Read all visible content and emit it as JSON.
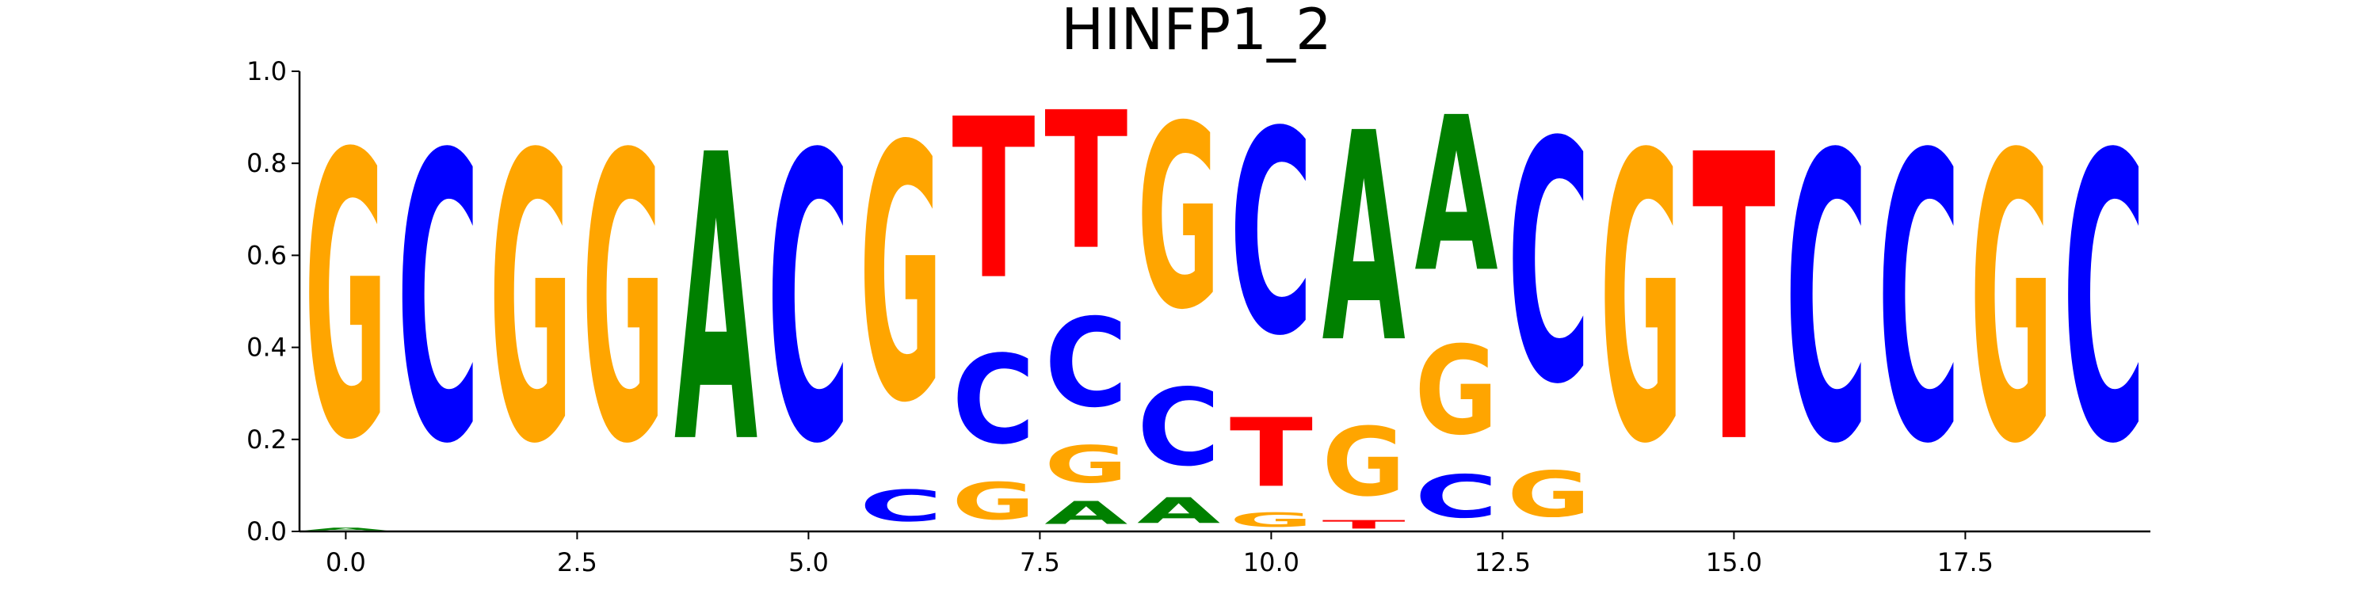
{
  "chart_data": {
    "type": "sequence-logo",
    "title": "HINFP1_2",
    "xlabel": "",
    "ylabel": "",
    "xlim": [
      -0.5,
      19.5
    ],
    "ylim": [
      0.0,
      1.0
    ],
    "x_ticks": [
      0.0,
      2.5,
      5.0,
      7.5,
      10.0,
      12.5,
      15.0,
      17.5
    ],
    "x_tick_labels": [
      "0.0",
      "2.5",
      "5.0",
      "7.5",
      "10.0",
      "12.5",
      "15.0",
      "17.5"
    ],
    "y_ticks": [
      0.0,
      0.2,
      0.4,
      0.6,
      0.8,
      1.0
    ],
    "y_tick_labels": [
      "0.0",
      "0.2",
      "0.4",
      "0.6",
      "0.8",
      "1.0"
    ],
    "colors": {
      "A": "#008000",
      "C": "#0000ff",
      "G": "#ffa500",
      "T": "#ff0000"
    },
    "positions": [
      {
        "pos": 0,
        "letters": [
          {
            "base": "A",
            "value": 0.01
          },
          {
            "base": "G",
            "value": 0.99
          }
        ]
      },
      {
        "pos": 1,
        "letters": [
          {
            "base": "C",
            "value": 1.0
          }
        ]
      },
      {
        "pos": 2,
        "letters": [
          {
            "base": "G",
            "value": 1.0
          }
        ]
      },
      {
        "pos": 3,
        "letters": [
          {
            "base": "G",
            "value": 1.0
          }
        ]
      },
      {
        "pos": 4,
        "letters": [
          {
            "base": "A",
            "value": 1.0
          }
        ]
      },
      {
        "pos": 5,
        "letters": [
          {
            "base": "C",
            "value": 1.0
          }
        ]
      },
      {
        "pos": 6,
        "letters": [
          {
            "base": "C",
            "value": 0.11
          },
          {
            "base": "G",
            "value": 0.89
          }
        ]
      },
      {
        "pos": 7,
        "letters": [
          {
            "base": "G",
            "value": 0.13
          },
          {
            "base": "C",
            "value": 0.31
          },
          {
            "base": "T",
            "value": 0.56
          }
        ]
      },
      {
        "pos": 8,
        "letters": [
          {
            "base": "A",
            "value": 0.08
          },
          {
            "base": "G",
            "value": 0.13
          },
          {
            "base": "C",
            "value": 0.31
          },
          {
            "base": "T",
            "value": 0.48
          }
        ]
      },
      {
        "pos": 9,
        "letters": [
          {
            "base": "A",
            "value": 0.09
          },
          {
            "base": "C",
            "value": 0.27
          },
          {
            "base": "G",
            "value": 0.64
          }
        ]
      },
      {
        "pos": 10,
        "letters": [
          {
            "base": "G",
            "value": 0.05
          },
          {
            "base": "T",
            "value": 0.24
          },
          {
            "base": "C",
            "value": 0.71
          }
        ]
      },
      {
        "pos": 11,
        "letters": [
          {
            "base": "T",
            "value": 0.03
          },
          {
            "base": "G",
            "value": 0.24
          },
          {
            "base": "A",
            "value": 0.73
          }
        ]
      },
      {
        "pos": 12,
        "letters": [
          {
            "base": "C",
            "value": 0.15
          },
          {
            "base": "G",
            "value": 0.31
          },
          {
            "base": "A",
            "value": 0.54
          }
        ]
      },
      {
        "pos": 13,
        "letters": [
          {
            "base": "G",
            "value": 0.16
          },
          {
            "base": "C",
            "value": 0.84
          }
        ]
      },
      {
        "pos": 14,
        "letters": [
          {
            "base": "G",
            "value": 1.0
          }
        ]
      },
      {
        "pos": 15,
        "letters": [
          {
            "base": "T",
            "value": 1.0
          }
        ]
      },
      {
        "pos": 16,
        "letters": [
          {
            "base": "C",
            "value": 1.0
          }
        ]
      },
      {
        "pos": 17,
        "letters": [
          {
            "base": "C",
            "value": 1.0
          }
        ]
      },
      {
        "pos": 18,
        "letters": [
          {
            "base": "G",
            "value": 1.0
          }
        ]
      },
      {
        "pos": 19,
        "letters": [
          {
            "base": "C",
            "value": 1.0
          }
        ]
      }
    ]
  }
}
